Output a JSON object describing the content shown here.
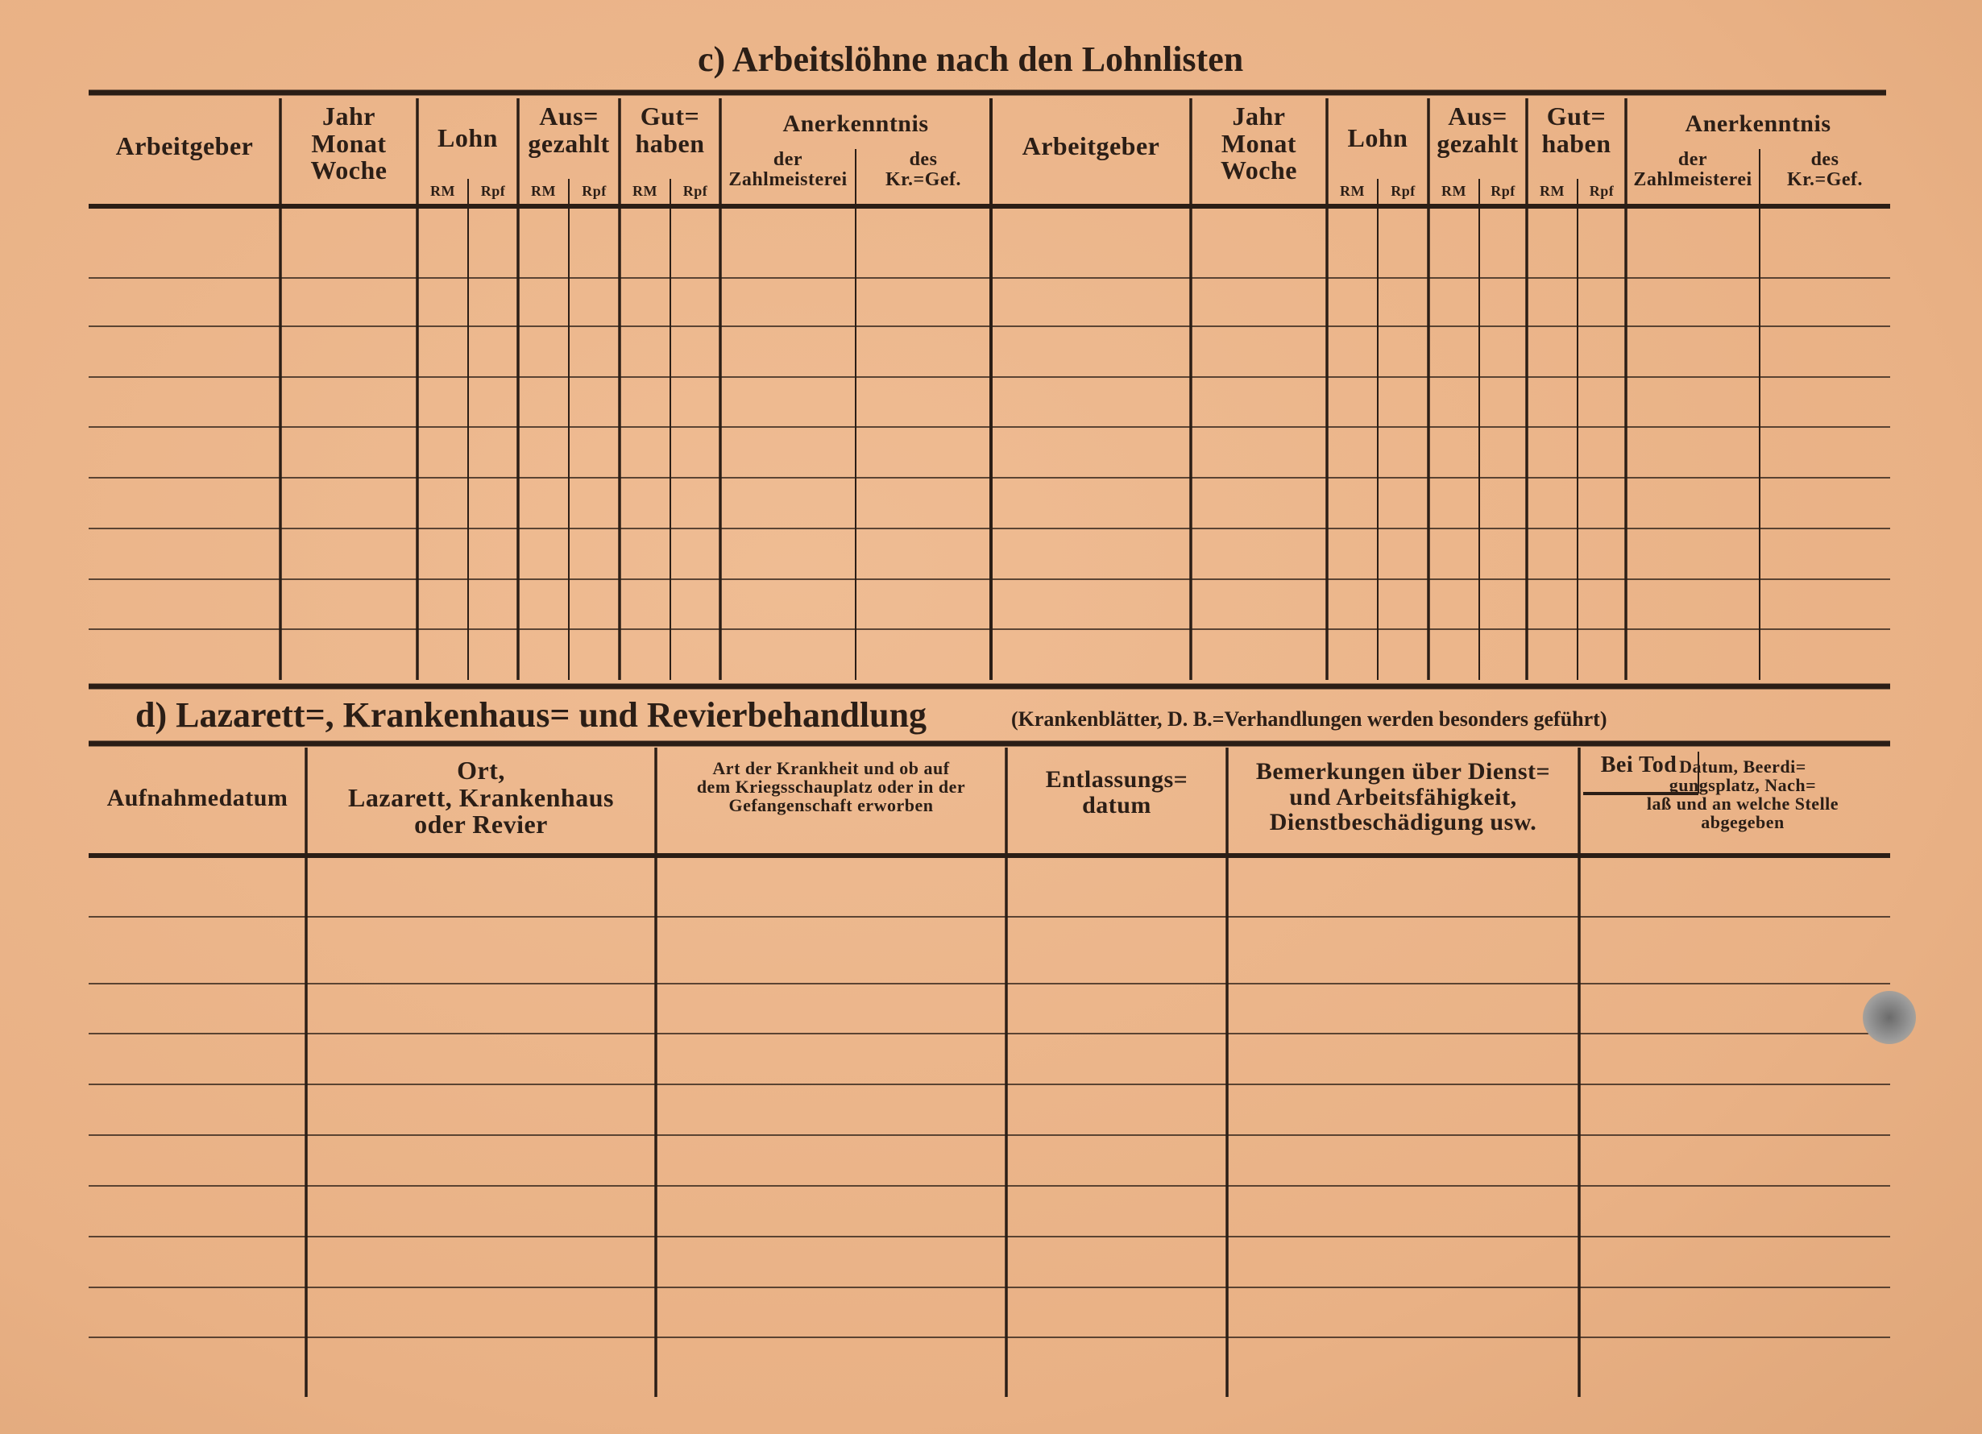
{
  "section_c": {
    "title": "c) Arbeitslöhne nach den Lohnlisten",
    "headers": {
      "employer": "Arbeitgeber",
      "period": "Jahr\nMonat\nWoche",
      "wage": "Lohn",
      "paid": "Aus=\ngezahlt",
      "credit": "Gut=\nhaben",
      "acknowledgement": "Anerkenntnis",
      "paymaster": "der\nZahlmeisterei",
      "pow_company": "des\nKr.=Gef.",
      "currency_rm": "RM",
      "currency_rpf": "Rpf"
    },
    "row_count": 9
  },
  "section_d": {
    "title": "d) Lazarett=, Krankenhaus= und Revierbehandlung",
    "note": "(Krankenblätter, D. B.=Verhandlungen werden besonders geführt)",
    "headers": {
      "admission_date": "Aufnahmedatum",
      "place": "Ort,\nLazarett, Krankenhaus\noder Revier",
      "illness": "Art der Krankheit und ob auf\ndem Kriegsschauplatz oder in der\nGefangenschaft erworben",
      "discharge_date": "Entlassungs=\ndatum",
      "remarks": "Bemerkungen über Dienst=\nund Arbeitsfähigkeit,\nDienstbeschädigung usw.",
      "death": "Bei Tod",
      "death_details": "Datum, Beerdi=\ngungsplatz, Nach=\nlaß und an welche Stelle\nabgegeben"
    },
    "row_count": 10
  },
  "colors": {
    "paper": "#ebb58b",
    "ink": "#2b1e16"
  }
}
